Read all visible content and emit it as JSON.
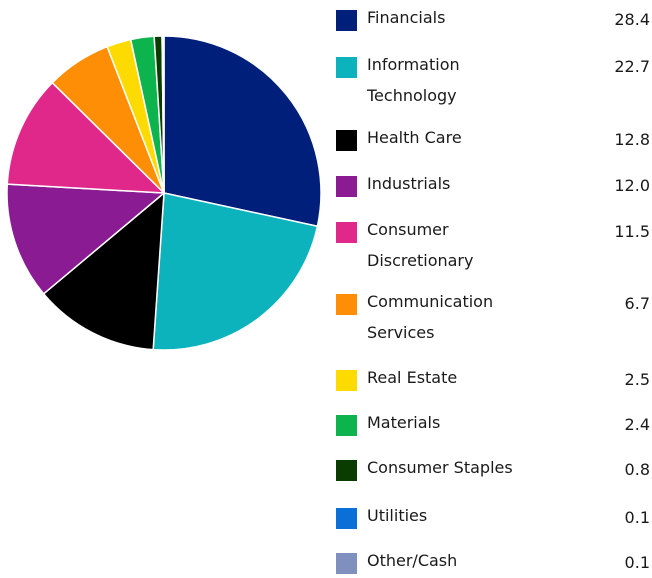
{
  "chart_data": {
    "type": "pie",
    "legend_position": "right",
    "slices": [
      {
        "label": "Financials",
        "value": 28.4,
        "display": "28.4",
        "color": "#001f7a"
      },
      {
        "label": "Information Technology",
        "value": 22.7,
        "display": "22.7",
        "color": "#0cb3bd"
      },
      {
        "label": "Health Care",
        "value": 12.8,
        "display": "12.8",
        "color": "#000000"
      },
      {
        "label": "Industrials",
        "value": 12.0,
        "display": "12.0",
        "color": "#8b1b93"
      },
      {
        "label": "Consumer Discretionary",
        "value": 11.5,
        "display": "11.5",
        "color": "#e0288b"
      },
      {
        "label": "Communication Services",
        "value": 6.7,
        "display": "6.7",
        "color": "#fd8e06"
      },
      {
        "label": "Real Estate",
        "value": 2.5,
        "display": "2.5",
        "color": "#fedb00"
      },
      {
        "label": "Materials",
        "value": 2.4,
        "display": "2.4",
        "color": "#0db34c"
      },
      {
        "label": "Consumer Staples",
        "value": 0.8,
        "display": "0.8",
        "color": "#0a3c00"
      },
      {
        "label": "Utilities",
        "value": 0.1,
        "display": "0.1",
        "color": "#0a6fd6"
      },
      {
        "label": "Other/Cash",
        "value": 0.1,
        "display": "0.1",
        "color": "#7f8fbe"
      }
    ]
  }
}
